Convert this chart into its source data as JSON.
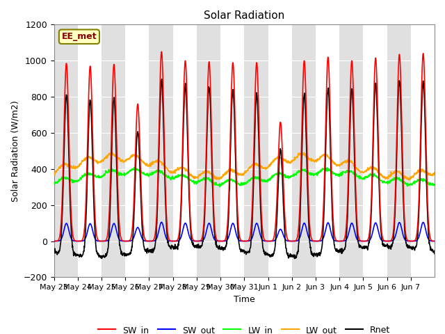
{
  "title": "Solar Radiation",
  "xlabel": "Time",
  "ylabel": "Solar Radiation (W/m2)",
  "ylim": [
    -200,
    1200
  ],
  "site_label": "EE_met",
  "x_tick_labels": [
    "May 23",
    "May 24",
    "May 25",
    "May 26",
    "May 27",
    "May 28",
    "May 29",
    "May 30",
    "May 31",
    "Jun 1",
    "Jun 2",
    "Jun 3",
    "Jun 4",
    "Jun 5",
    "Jun 6",
    "Jun 7"
  ],
  "n_days": 16,
  "background_color": "#ffffff",
  "band_color": "#e0e0e0",
  "SW_in_peaks": [
    985,
    970,
    980,
    760,
    1050,
    1000,
    995,
    990,
    990,
    660,
    1000,
    1020,
    1000,
    1015,
    1035,
    1040
  ],
  "LW_in_base": 345,
  "LW_out_base": 415,
  "pts_per_day": 96
}
